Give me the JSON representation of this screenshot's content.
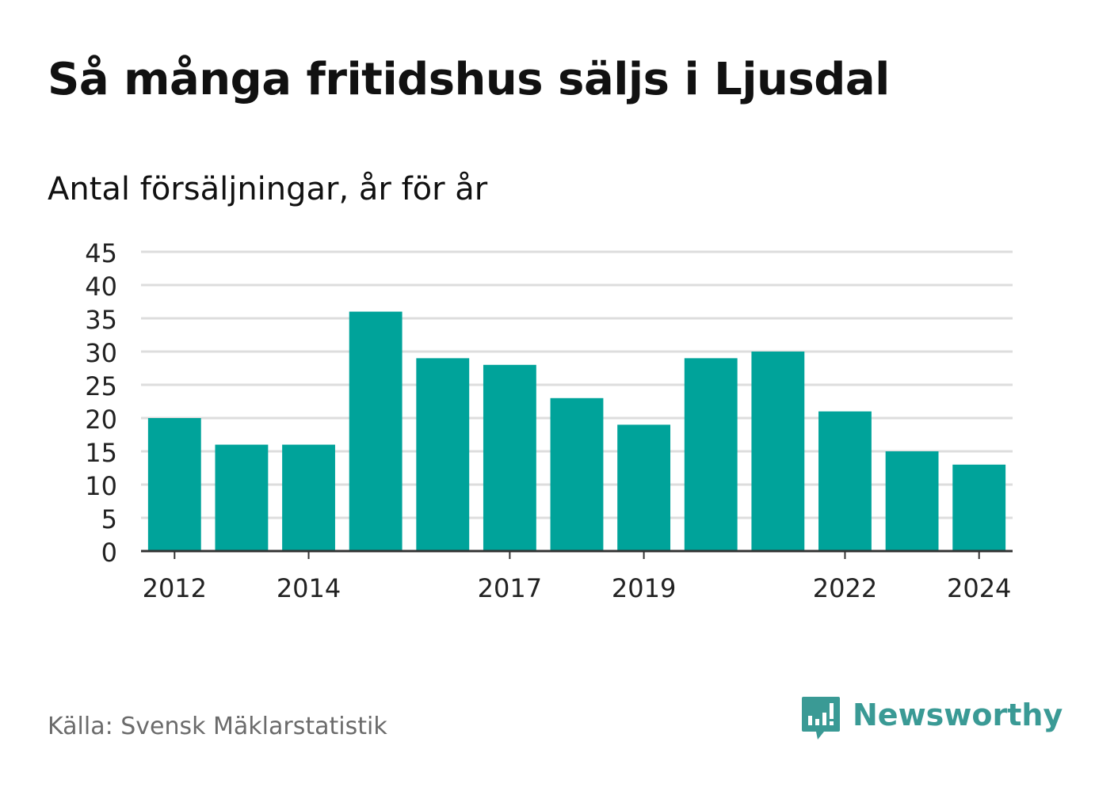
{
  "header": {
    "title": "Så många fritidshus säljs i Ljusdal",
    "subtitle": "Antal försäljningar, år för år"
  },
  "footer": {
    "source": "Källa: Svensk Mäklarstatistik",
    "brand": "Newsworthy",
    "brand_icon": "newsworthy-logo-icon"
  },
  "colors": {
    "bar": "#00a39a",
    "grid": "#dddddd",
    "axis": "#333333",
    "text": "#111111",
    "source": "#6b6b6b",
    "brand": "#3a9a95"
  },
  "chart_data": {
    "type": "bar",
    "categories": [
      "2012",
      "2013",
      "2014",
      "2015",
      "2016",
      "2017",
      "2018",
      "2019",
      "2020",
      "2021",
      "2022",
      "2023",
      "2024"
    ],
    "values": [
      20,
      16,
      16,
      36,
      29,
      28,
      23,
      19,
      29,
      30,
      21,
      15,
      13
    ],
    "x_tick_labels": [
      "2012",
      "2014",
      "2017",
      "2019",
      "2022",
      "2024"
    ],
    "y_ticks": [
      0,
      5,
      10,
      15,
      20,
      25,
      30,
      35,
      40,
      45
    ],
    "ylim": [
      0,
      45
    ],
    "xlabel": "",
    "ylabel": "",
    "grid": true,
    "legend": "none"
  }
}
